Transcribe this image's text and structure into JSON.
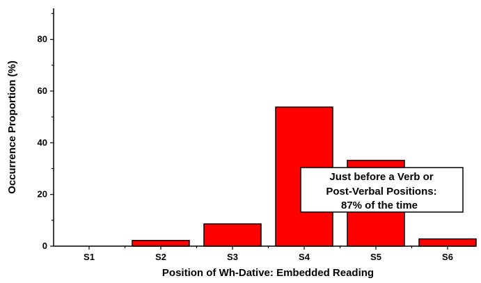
{
  "chart_data": {
    "type": "bar",
    "categories": [
      "S1",
      "S2",
      "S3",
      "S4",
      "S5",
      "S6"
    ],
    "values": [
      0,
      2.2,
      8.6,
      53.8,
      33.2,
      2.8
    ],
    "title": "",
    "xlabel": "Position of Wh-Dative: Embedded Reading",
    "ylabel": "Occurrence Proportion (%)",
    "ylim": [
      0,
      92
    ],
    "yticks": [
      0,
      20,
      40,
      60,
      80
    ],
    "grid": false,
    "bar_color": "#ff0000",
    "bar_edge_color": "#000000",
    "annotation": {
      "lines": [
        "Just before a Verb or",
        "Post-Verbal Positions:",
        "87% of the time"
      ]
    }
  }
}
